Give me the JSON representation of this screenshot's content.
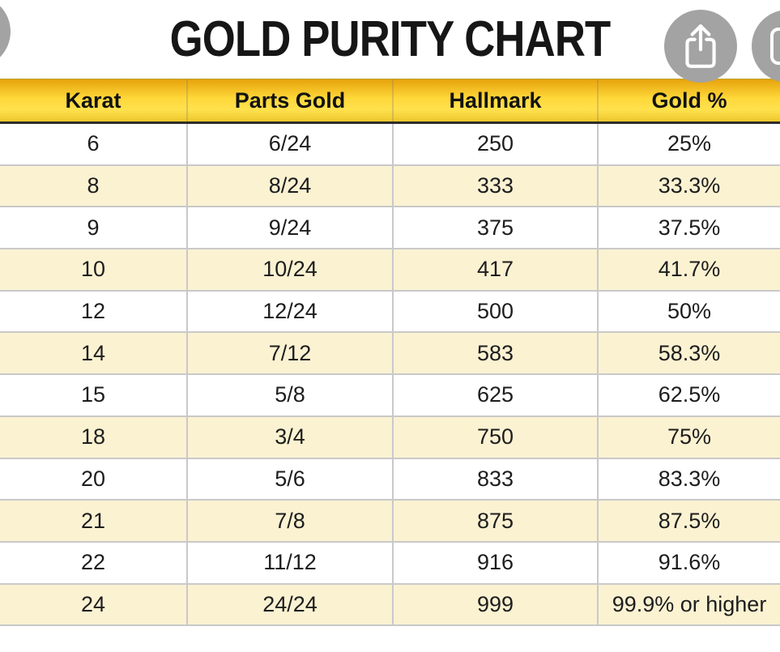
{
  "title": "GOLD PURITY CHART",
  "chart_data": {
    "type": "table",
    "title": "GOLD PURITY CHART",
    "columns": [
      "Karat",
      "Parts Gold",
      "Hallmark",
      "Gold %"
    ],
    "rows": [
      [
        "6",
        "6/24",
        "250",
        "25%"
      ],
      [
        "8",
        "8/24",
        "333",
        "33.3%"
      ],
      [
        "9",
        "9/24",
        "375",
        "37.5%"
      ],
      [
        "10",
        "10/24",
        "417",
        "41.7%"
      ],
      [
        "12",
        "12/24",
        "500",
        "50%"
      ],
      [
        "14",
        "7/12",
        "583",
        "58.3%"
      ],
      [
        "15",
        "5/8",
        "625",
        "62.5%"
      ],
      [
        "18",
        "3/4",
        "750",
        "75%"
      ],
      [
        "20",
        "5/6",
        "833",
        "83.3%"
      ],
      [
        "21",
        "7/8",
        "875",
        "87.5%"
      ],
      [
        "22",
        "11/12",
        "916",
        "91.6%"
      ],
      [
        "24",
        "24/24",
        "999",
        "99.9% or higher"
      ]
    ]
  },
  "icons": {
    "share": "ios-share-icon",
    "more": "rounded-square-icon-fragment",
    "back": "clipped-circle-button"
  },
  "colors": {
    "header-grad-top": "#e6a30b",
    "header-grad-mid": "#ffd83a",
    "header-grad-bottom": "#ffe14e",
    "header-grad-edge": "#eec72c",
    "header-underline": "#2e2d28",
    "row-alt": "#fbf2d2",
    "grid-line": "#c9c9c9",
    "button-gray": "#a3a3a3",
    "title-color": "#161616"
  }
}
